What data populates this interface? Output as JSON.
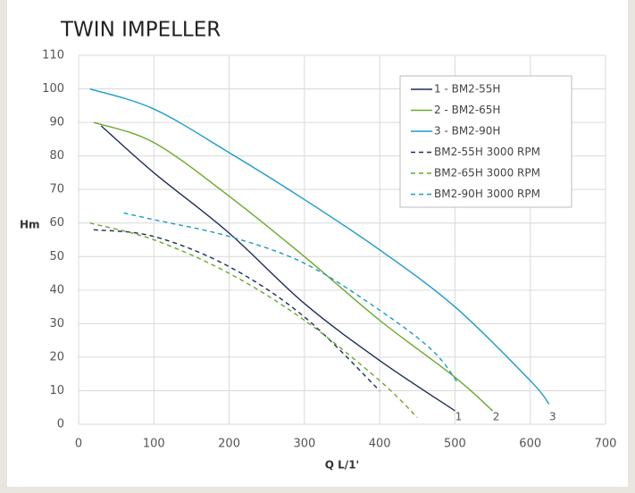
{
  "chart_data": {
    "type": "line",
    "title": "TWIN IMPELLER",
    "x_label": "Q L/1'",
    "y_label": "Hm",
    "xlim": [
      0,
      700
    ],
    "xticks": [
      0,
      100,
      200,
      300,
      400,
      500,
      600,
      700
    ],
    "ylim": [
      0,
      110
    ],
    "yticks": [
      0,
      10,
      20,
      30,
      40,
      50,
      60,
      70,
      80,
      90,
      100,
      110
    ],
    "grid": true,
    "legend": "upper right",
    "series": [
      {
        "name": "1 - BM2-55H",
        "color": "#1f2d5c",
        "dashed": false,
        "end_label": "1",
        "x": [
          30,
          100,
          200,
          300,
          400,
          500
        ],
        "values": [
          89,
          75,
          57,
          36,
          19,
          4
        ]
      },
      {
        "name": "2 - BM2-65H",
        "color": "#6aaa2a",
        "dashed": false,
        "end_label": "2",
        "x": [
          20,
          100,
          200,
          300,
          400,
          500,
          550
        ],
        "values": [
          90,
          84,
          68,
          50,
          31,
          14,
          4
        ]
      },
      {
        "name": "3 - BM2-90H",
        "color": "#1a9bc9",
        "dashed": false,
        "end_label": "3",
        "x": [
          15,
          100,
          200,
          300,
          400,
          500,
          600,
          625
        ],
        "values": [
          100,
          94,
          81,
          67,
          52,
          35,
          13,
          6
        ]
      },
      {
        "name": "BM2-55H 3000 RPM",
        "color": "#1f2d5c",
        "dashed": true,
        "x": [
          20,
          100,
          200,
          300,
          400
        ],
        "values": [
          58,
          56,
          47,
          32,
          10
        ]
      },
      {
        "name": "BM2-65H 3000 RPM",
        "color": "#6aaa2a",
        "dashed": true,
        "x": [
          15,
          100,
          200,
          300,
          400,
          450
        ],
        "values": [
          60,
          55,
          45,
          31,
          13,
          2
        ]
      },
      {
        "name": "BM2-90H 3000 RPM",
        "color": "#1a9bc9",
        "dashed": true,
        "x": [
          60,
          100,
          200,
          300,
          400,
          470,
          505
        ],
        "values": [
          63,
          61,
          56,
          48,
          34,
          22,
          12
        ]
      }
    ]
  }
}
